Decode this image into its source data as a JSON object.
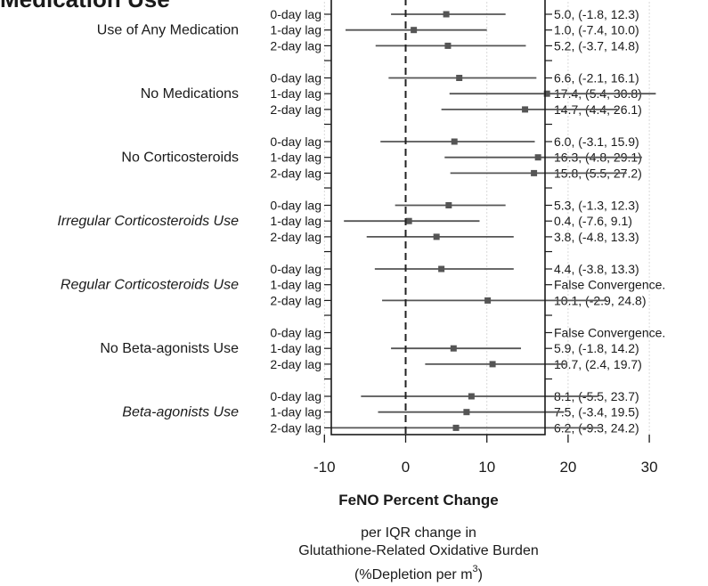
{
  "chart_data": {
    "type": "forest",
    "heading": "Medication Use",
    "xlabel": "FeNO Percent Change",
    "xsubtitle": [
      "per IQR change in",
      "Glutathione-Related Oxidative Burden",
      "(%Depletion per m",
      "3",
      ")"
    ],
    "xlim": [
      -15,
      35
    ],
    "xticks": [
      -10,
      0,
      10,
      20,
      30
    ],
    "grid_x": [
      -10,
      10,
      20,
      30
    ],
    "reference_line": 0,
    "colors": {
      "marker": "#555555",
      "ci_line": "#555555",
      "grid": "#d9d9d9",
      "reference": "#222222"
    },
    "groups": [
      {
        "name": "Use of Any Medication",
        "italic": false,
        "rows": [
          {
            "lag": "0-day lag",
            "est": 5.0,
            "lo": -1.8,
            "hi": 12.3,
            "label": "5.0, (-1.8, 12.3)"
          },
          {
            "lag": "1-day lag",
            "est": 1.0,
            "lo": -7.4,
            "hi": 10.0,
            "label": "1.0, (-7.4, 10.0)"
          },
          {
            "lag": "2-day lag",
            "est": 5.2,
            "lo": -3.7,
            "hi": 14.8,
            "label": "5.2, (-3.7, 14.8)"
          }
        ]
      },
      {
        "name": "No Medications",
        "italic": false,
        "rows": [
          {
            "lag": "0-day lag",
            "est": 6.6,
            "lo": -2.1,
            "hi": 16.1,
            "label": "6.6, (-2.1, 16.1)"
          },
          {
            "lag": "1-day lag",
            "est": 17.4,
            "lo": 5.4,
            "hi": 30.8,
            "label": "17.4, (5.4, 30.8)"
          },
          {
            "lag": "2-day lag",
            "est": 14.7,
            "lo": 4.4,
            "hi": 26.1,
            "label": "14.7, (4.4, 26.1)"
          }
        ]
      },
      {
        "name": "No Corticosteroids",
        "italic": false,
        "rows": [
          {
            "lag": "0-day lag",
            "est": 6.0,
            "lo": -3.1,
            "hi": 15.9,
            "label": "6.0, (-3.1, 15.9)"
          },
          {
            "lag": "1-day lag",
            "est": 16.3,
            "lo": 4.8,
            "hi": 29.1,
            "label": "16.3, (4.8, 29.1)"
          },
          {
            "lag": "2-day lag",
            "est": 15.8,
            "lo": 5.5,
            "hi": 27.2,
            "label": "15.8, (5.5, 27.2)"
          }
        ]
      },
      {
        "name": "Irregular Corticosteroids Use",
        "italic": true,
        "rows": [
          {
            "lag": "0-day lag",
            "est": 5.3,
            "lo": -1.3,
            "hi": 12.3,
            "label": "5.3, (-1.3, 12.3)"
          },
          {
            "lag": "1-day lag",
            "est": 0.4,
            "lo": -7.6,
            "hi": 9.1,
            "label": "0.4, (-7.6, 9.1)"
          },
          {
            "lag": "2-day lag",
            "est": 3.8,
            "lo": -4.8,
            "hi": 13.3,
            "label": "3.8, (-4.8, 13.3)"
          }
        ]
      },
      {
        "name": "Regular Corticosteroids Use",
        "italic": true,
        "rows": [
          {
            "lag": "0-day lag",
            "est": 4.4,
            "lo": -3.8,
            "hi": 13.3,
            "label": "4.4, (-3.8, 13.3)"
          },
          {
            "lag": "1-day lag",
            "est": null,
            "lo": null,
            "hi": null,
            "label": "False Convergence."
          },
          {
            "lag": "2-day lag",
            "est": 10.1,
            "lo": -2.9,
            "hi": 24.8,
            "label": "10.1, (-2.9, 24.8)"
          }
        ]
      },
      {
        "name": "No Beta-agonists Use",
        "italic": false,
        "rows": [
          {
            "lag": "0-day lag",
            "est": null,
            "lo": null,
            "hi": null,
            "label": "False Convergence."
          },
          {
            "lag": "1-day lag",
            "est": 5.9,
            "lo": -1.8,
            "hi": 14.2,
            "label": "5.9, (-1.8, 14.2)"
          },
          {
            "lag": "2-day lag",
            "est": 10.7,
            "lo": 2.4,
            "hi": 19.7,
            "label": "10.7, (2.4, 19.7)"
          }
        ]
      },
      {
        "name": "Beta-agonists Use",
        "italic": true,
        "rows": [
          {
            "lag": "0-day lag",
            "est": 8.1,
            "lo": -5.5,
            "hi": 23.7,
            "label": "8.1, (-5.5, 23.7)"
          },
          {
            "lag": "1-day lag",
            "est": 7.5,
            "lo": -3.4,
            "hi": 19.5,
            "label": "7.5, (-3.4, 19.5)"
          },
          {
            "lag": "2-day lag",
            "est": 6.2,
            "lo": -9.3,
            "hi": 24.2,
            "label": "6.2, (-9.3, 24.2)"
          }
        ]
      }
    ]
  }
}
